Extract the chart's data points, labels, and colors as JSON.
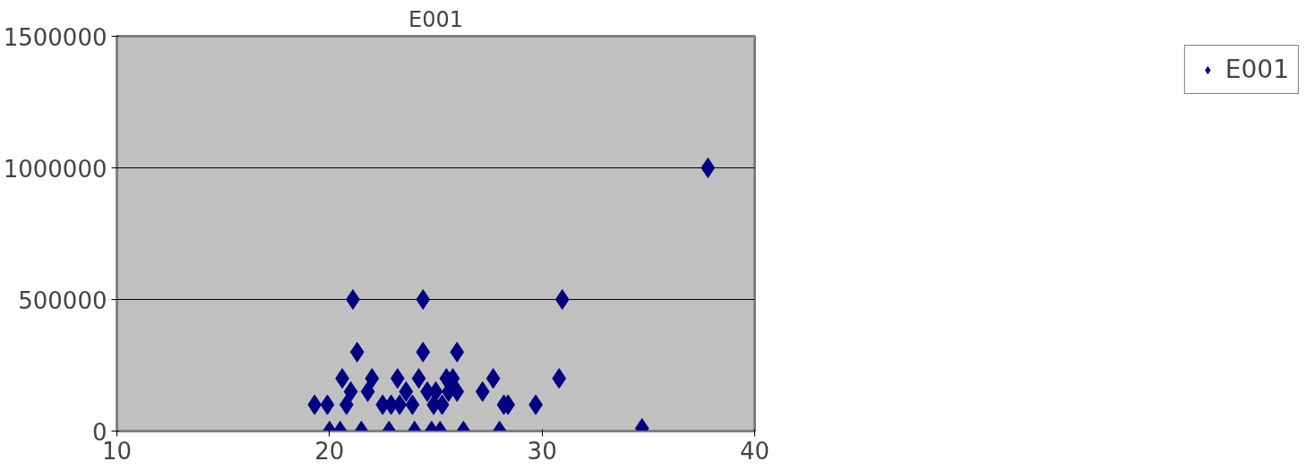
{
  "chart_data": {
    "type": "scatter",
    "title": "E001",
    "xlim": [
      10,
      40
    ],
    "xticks": [
      10,
      20,
      30,
      40
    ],
    "ylim": [
      0,
      1500000
    ],
    "yticks": [
      0,
      500000,
      1000000,
      1500000
    ],
    "grid": "y",
    "legend": "right",
    "marker": "diamond",
    "series": [
      {
        "name": "E001",
        "color": "#000080",
        "x": [
          37.8,
          30.95,
          34.7,
          30.8,
          29.7,
          28.4,
          28.2,
          28.0,
          27.2,
          27.7,
          26.0,
          24.4,
          21.1,
          21.3,
          24.4,
          19.3,
          19.9,
          20.0,
          20.5,
          20.6,
          20.8,
          21.5,
          21.8,
          22.0,
          21.0,
          22.8,
          22.9,
          23.2,
          23.6,
          24.0,
          24.2,
          24.8,
          25.2,
          25.0,
          25.5,
          23.9,
          24.6,
          25.3,
          25.8,
          26.3,
          26.0,
          23.3,
          24.9,
          25.6,
          22.5
        ],
        "values": [
          1000000,
          500000,
          10000,
          200000,
          100000,
          100000,
          100000,
          0,
          150000,
          200000,
          300000,
          500000,
          500000,
          300000,
          300000,
          100000,
          100000,
          0,
          0,
          200000,
          100000,
          0,
          150000,
          200000,
          150000,
          0,
          100000,
          200000,
          150000,
          0,
          200000,
          0,
          0,
          150000,
          200000,
          100000,
          150000,
          100000,
          200000,
          0,
          150000,
          100000,
          100000,
          150000,
          100000
        ]
      }
    ]
  }
}
